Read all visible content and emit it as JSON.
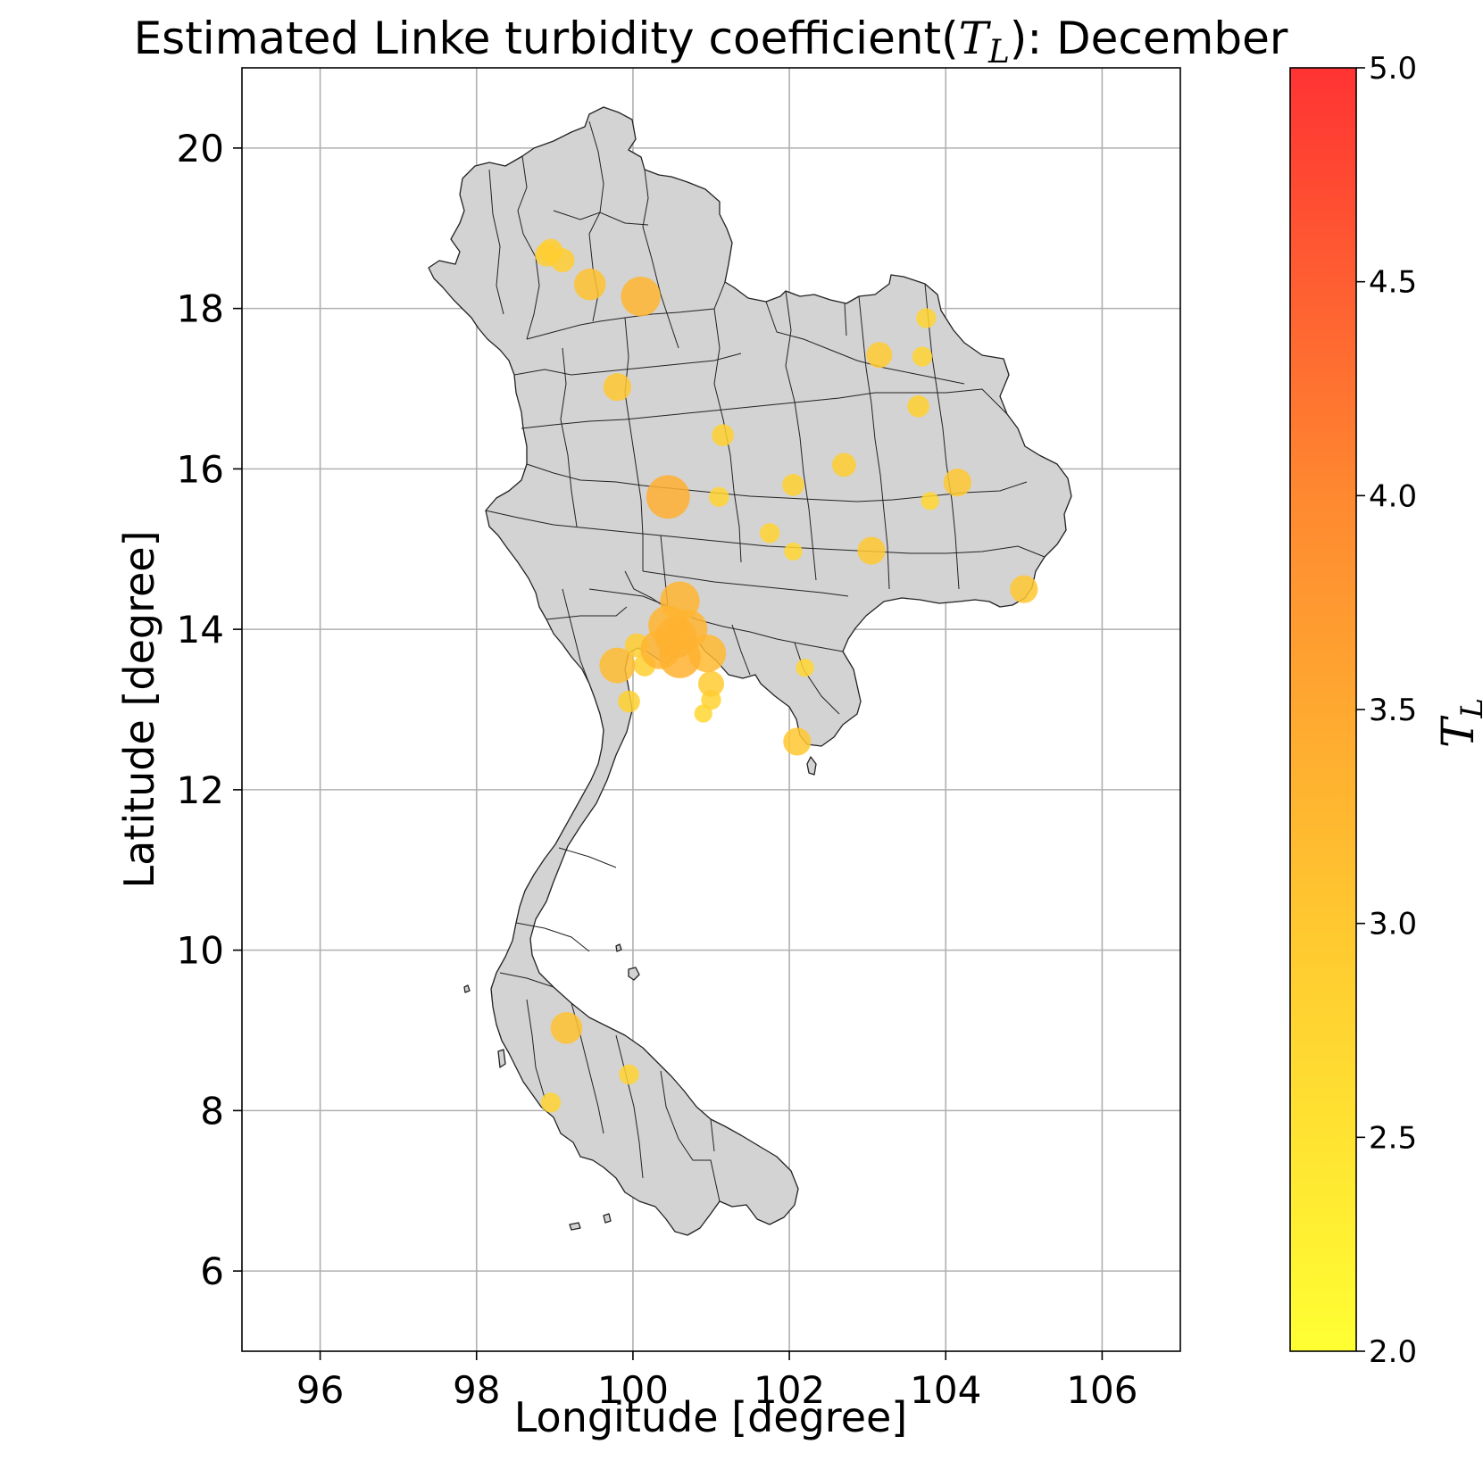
{
  "chart_data": {
    "type": "scatter",
    "title": "Estimated Linke turbidity coefficient(",
    "title_math": "T",
    "title_math_sub": "L",
    "title_suffix": "): December",
    "xlabel": "Longitude [degree]",
    "ylabel": "Latitude [degree]",
    "xlim": [
      95,
      107
    ],
    "ylim": [
      5,
      21
    ],
    "xticks": [
      96,
      98,
      100,
      102,
      104,
      106
    ],
    "yticks": [
      6,
      8,
      10,
      12,
      14,
      16,
      18,
      20
    ],
    "grid": true,
    "colorbar": {
      "label": "T",
      "label_sub": "L",
      "range": [
        2.0,
        5.0
      ],
      "ticks": [
        "2.0",
        "2.5",
        "3.0",
        "3.5",
        "4.0",
        "4.5",
        "5.0"
      ],
      "colors": [
        "#ffff33",
        "#ffc830",
        "#ff8a30",
        "#ff3333"
      ]
    },
    "points": [
      {
        "lon": 98.95,
        "lat": 18.72,
        "tl": 2.9
      },
      {
        "lon": 98.9,
        "lat": 18.67,
        "tl": 2.9
      },
      {
        "lon": 99.1,
        "lat": 18.6,
        "tl": 2.9
      },
      {
        "lon": 99.45,
        "lat": 18.3,
        "tl": 3.1
      },
      {
        "lon": 100.1,
        "lat": 18.15,
        "tl": 3.3
      },
      {
        "lon": 99.8,
        "lat": 17.02,
        "tl": 3.0
      },
      {
        "lon": 103.75,
        "lat": 17.88,
        "tl": 2.8
      },
      {
        "lon": 103.15,
        "lat": 17.42,
        "tl": 2.95
      },
      {
        "lon": 103.7,
        "lat": 17.4,
        "tl": 2.8
      },
      {
        "lon": 103.65,
        "lat": 16.78,
        "tl": 2.85
      },
      {
        "lon": 101.15,
        "lat": 16.42,
        "tl": 2.85
      },
      {
        "lon": 102.7,
        "lat": 16.05,
        "tl": 2.9
      },
      {
        "lon": 104.15,
        "lat": 15.83,
        "tl": 3.0
      },
      {
        "lon": 102.05,
        "lat": 15.8,
        "tl": 2.85
      },
      {
        "lon": 100.45,
        "lat": 15.65,
        "tl": 3.4
      },
      {
        "lon": 101.1,
        "lat": 15.65,
        "tl": 2.8
      },
      {
        "lon": 103.8,
        "lat": 15.6,
        "tl": 2.75
      },
      {
        "lon": 101.75,
        "lat": 15.2,
        "tl": 2.8
      },
      {
        "lon": 102.05,
        "lat": 14.97,
        "tl": 2.75
      },
      {
        "lon": 103.05,
        "lat": 14.98,
        "tl": 3.0
      },
      {
        "lon": 105.0,
        "lat": 14.5,
        "tl": 3.0
      },
      {
        "lon": 100.6,
        "lat": 14.35,
        "tl": 3.3
      },
      {
        "lon": 100.45,
        "lat": 14.05,
        "tl": 3.3
      },
      {
        "lon": 100.7,
        "lat": 14.0,
        "tl": 3.3
      },
      {
        "lon": 100.55,
        "lat": 13.9,
        "tl": 3.35
      },
      {
        "lon": 100.05,
        "lat": 13.8,
        "tl": 2.9
      },
      {
        "lon": 100.35,
        "lat": 13.75,
        "tl": 3.3
      },
      {
        "lon": 100.6,
        "lat": 13.65,
        "tl": 3.35
      },
      {
        "lon": 100.95,
        "lat": 13.7,
        "tl": 3.25
      },
      {
        "lon": 99.8,
        "lat": 13.55,
        "tl": 3.2
      },
      {
        "lon": 100.15,
        "lat": 13.55,
        "tl": 2.85
      },
      {
        "lon": 102.2,
        "lat": 13.52,
        "tl": 2.75
      },
      {
        "lon": 101.0,
        "lat": 13.32,
        "tl": 2.95
      },
      {
        "lon": 99.95,
        "lat": 13.1,
        "tl": 2.85
      },
      {
        "lon": 101.0,
        "lat": 13.12,
        "tl": 2.8
      },
      {
        "lon": 100.9,
        "lat": 12.95,
        "tl": 2.75
      },
      {
        "lon": 102.1,
        "lat": 12.6,
        "tl": 3.0
      },
      {
        "lon": 99.15,
        "lat": 9.03,
        "tl": 3.1
      },
      {
        "lon": 99.95,
        "lat": 8.45,
        "tl": 2.8
      },
      {
        "lon": 98.95,
        "lat": 8.1,
        "tl": 2.8
      }
    ]
  }
}
